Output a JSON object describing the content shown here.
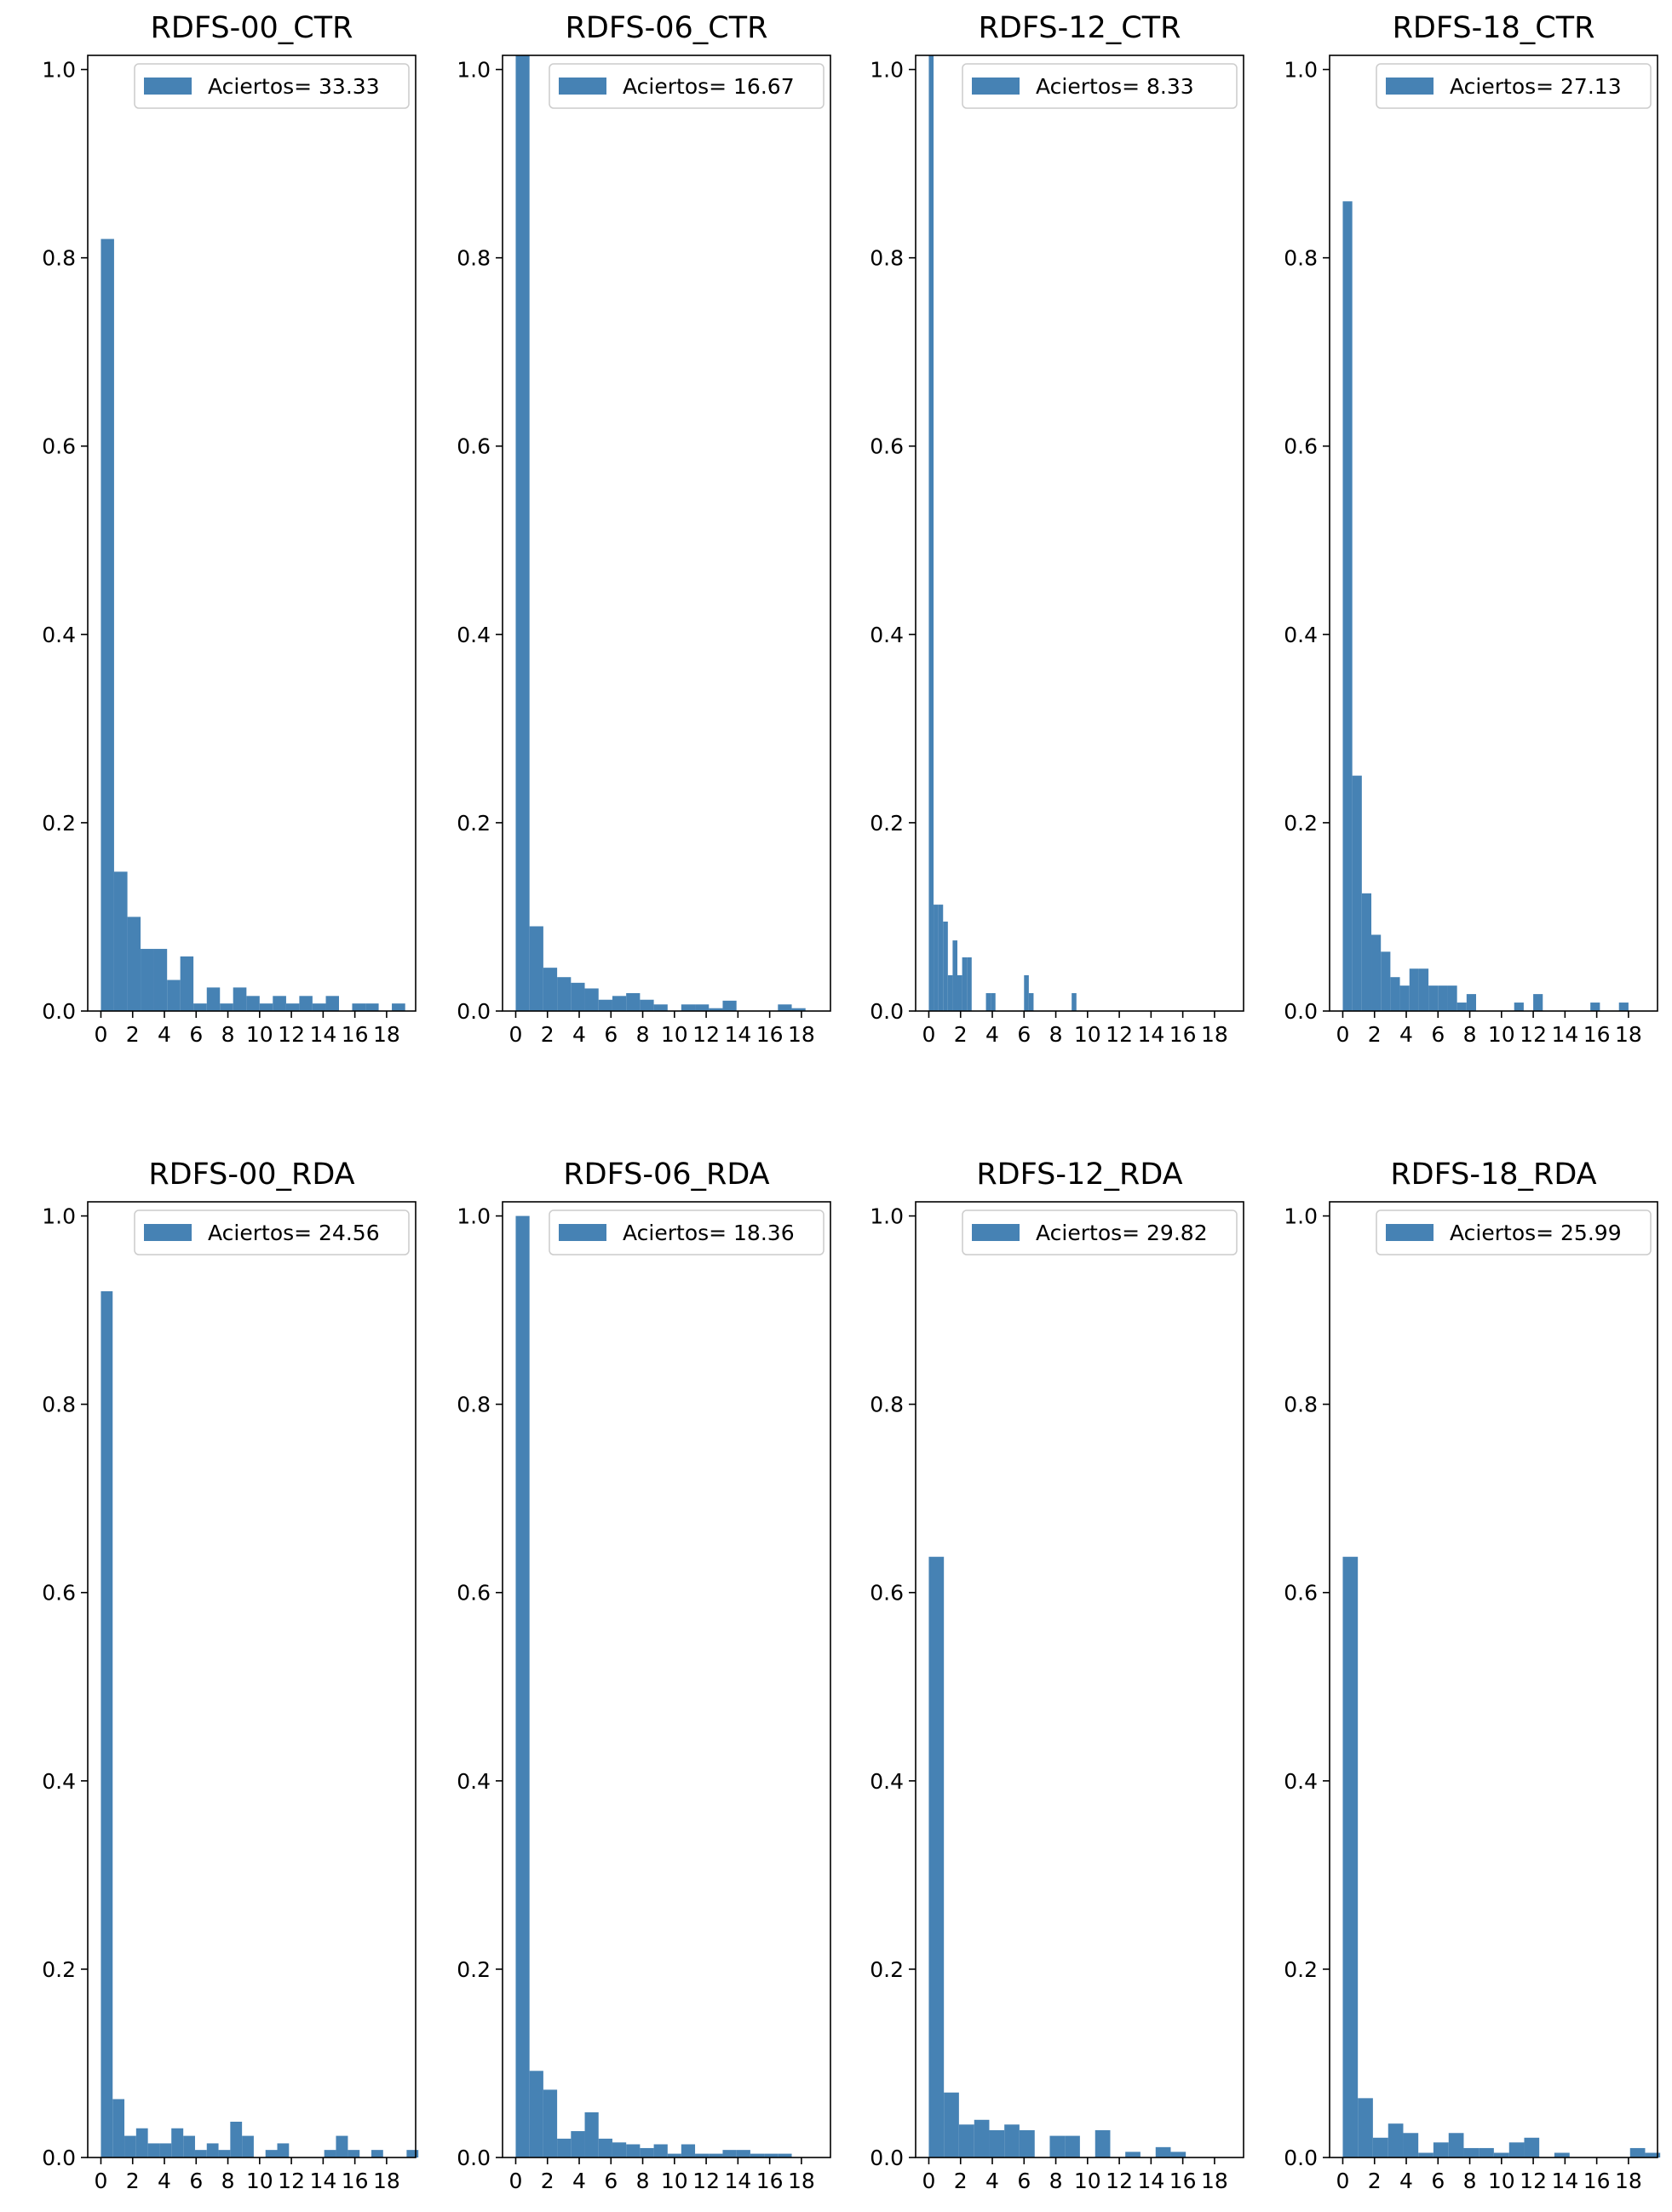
{
  "chart_data": [
    {
      "type": "bar",
      "title": "RDFS-00_CTR",
      "legend": "Aciertos= 33.33",
      "legend_position": "upper right",
      "bar_color": "#4682b4",
      "xlim": [
        -0.83,
        19.83
      ],
      "ylim": [
        0,
        1.015
      ],
      "xticks": [
        "0",
        "2",
        "4",
        "6",
        "8",
        "10",
        "12",
        "14",
        "16",
        "18"
      ],
      "yticks": [
        "0.0",
        "0.2",
        "0.4",
        "0.6",
        "0.8",
        "1.0"
      ],
      "bars": {
        "edges": [
          0,
          0.83,
          1.67,
          2.5,
          3.33,
          4.17,
          5,
          5.83,
          6.67,
          7.5,
          8.33,
          9.17,
          10,
          10.83,
          11.67,
          12.5,
          13.33,
          14.17,
          15,
          15.83,
          16.67,
          17.5,
          18.33,
          19.17,
          20
        ],
        "values": [
          0.82,
          0.148,
          0.1,
          0.066,
          0.066,
          0.033,
          0.058,
          0.008,
          0.025,
          0.008,
          0.025,
          0.016,
          0.008,
          0.016,
          0.008,
          0.016,
          0.008,
          0.016,
          0,
          0.008,
          0.008,
          0,
          0.008,
          0,
          0.016
        ]
      }
    },
    {
      "type": "bar",
      "title": "RDFS-06_CTR",
      "legend": "Aciertos= 16.67",
      "legend_position": "upper right",
      "bar_color": "#4682b4",
      "xlim": [
        -0.83,
        19.83
      ],
      "ylim": [
        0,
        1.015
      ],
      "xticks": [
        "0",
        "2",
        "4",
        "6",
        "8",
        "10",
        "12",
        "14",
        "16",
        "18"
      ],
      "yticks": [
        "0.0",
        "0.2",
        "0.4",
        "0.6",
        "0.8",
        "1.0"
      ],
      "bars": {
        "edges": [
          0,
          0.87,
          1.74,
          2.61,
          3.48,
          4.35,
          5.22,
          6.09,
          6.96,
          7.83,
          8.7,
          9.57,
          10.43,
          11.3,
          12.17,
          13.04,
          13.91,
          14.78,
          15.65,
          16.52,
          17.39,
          18.26,
          19.13,
          20
        ],
        "values": [
          1.015,
          0.09,
          0.046,
          0.036,
          0.03,
          0.024,
          0.012,
          0.016,
          0.019,
          0.012,
          0.007,
          0,
          0.007,
          0.007,
          0.003,
          0.011,
          0,
          0,
          0,
          0.007,
          0.003,
          0,
          0,
          0.007
        ]
      }
    },
    {
      "type": "bar",
      "title": "RDFS-12_CTR",
      "legend": "Aciertos= 8.33",
      "legend_position": "upper right",
      "bar_color": "#4682b4",
      "xlim": [
        -0.83,
        19.83
      ],
      "ylim": [
        0,
        1.015
      ],
      "xticks": [
        "0",
        "2",
        "4",
        "6",
        "8",
        "10",
        "12",
        "14",
        "16",
        "18"
      ],
      "yticks": [
        "0.0",
        "0.2",
        "0.4",
        "0.6",
        "0.8",
        "1.0"
      ],
      "bars": {
        "edges": [
          0,
          0.3,
          0.6,
          0.9,
          1.2,
          1.5,
          1.8,
          2.1,
          2.4,
          2.7,
          3.0,
          3.3,
          3.6,
          3.9,
          4.2,
          4.5,
          4.8,
          5.1,
          5.4,
          5.7,
          6.0,
          6.3,
          6.6,
          6.9,
          7.2,
          7.5,
          7.8,
          8.1,
          8.4,
          8.7,
          9.0,
          9.3
        ],
        "values": [
          1.015,
          0.113,
          0.113,
          0.095,
          0.038,
          0.075,
          0.038,
          0.057,
          0.057,
          0,
          0,
          0,
          0.019,
          0.019,
          0,
          0,
          0,
          0,
          0,
          0,
          0.038,
          0.019,
          0,
          0,
          0,
          0,
          0,
          0,
          0,
          0,
          0.019
        ]
      }
    },
    {
      "type": "bar",
      "title": "RDFS-18_CTR",
      "legend": "Aciertos= 27.13",
      "legend_position": "upper right",
      "bar_color": "#4682b4",
      "xlim": [
        -0.83,
        19.83
      ],
      "ylim": [
        0,
        1.015
      ],
      "xticks": [
        "0",
        "2",
        "4",
        "6",
        "8",
        "10",
        "12",
        "14",
        "16",
        "18"
      ],
      "yticks": [
        "0.0",
        "0.2",
        "0.4",
        "0.6",
        "0.8",
        "1.0"
      ],
      "bars": {
        "edges": [
          0,
          0.6,
          1.2,
          1.8,
          2.4,
          3.0,
          3.6,
          4.2,
          4.8,
          5.4,
          6.0,
          6.6,
          7.2,
          7.8,
          8.4,
          9.0,
          9.6,
          10.2,
          10.8,
          11.4,
          12.0,
          12.6,
          13.2,
          13.8,
          14.4,
          15.0,
          15.6,
          16.2,
          16.8,
          17.4,
          18.0
        ],
        "values": [
          0.86,
          0.25,
          0.125,
          0.081,
          0.063,
          0.036,
          0.027,
          0.045,
          0.045,
          0.027,
          0.027,
          0.027,
          0.009,
          0.018,
          0,
          0,
          0,
          0,
          0.009,
          0,
          0.018,
          0,
          0,
          0,
          0,
          0,
          0.009,
          0,
          0,
          0.009
        ]
      }
    },
    {
      "type": "bar",
      "title": "RDFS-00_RDA",
      "legend": "Aciertos= 24.56",
      "legend_position": "upper right",
      "bar_color": "#4682b4",
      "xlim": [
        -0.83,
        19.83
      ],
      "ylim": [
        0,
        1.015
      ],
      "xticks": [
        "0",
        "2",
        "4",
        "6",
        "8",
        "10",
        "12",
        "14",
        "16",
        "18"
      ],
      "yticks": [
        "0.0",
        "0.2",
        "0.4",
        "0.6",
        "0.8",
        "1.0"
      ],
      "bars": {
        "edges": [
          0,
          0.74,
          1.48,
          2.22,
          2.96,
          3.7,
          4.44,
          5.19,
          5.93,
          6.67,
          7.41,
          8.15,
          8.89,
          9.63,
          10.37,
          11.11,
          11.85,
          12.59,
          13.33,
          14.07,
          14.81,
          15.56,
          16.3,
          17.04,
          17.78,
          18.52,
          19.26,
          20
        ],
        "values": [
          0.92,
          0.062,
          0.023,
          0.031,
          0.015,
          0.015,
          0.031,
          0.023,
          0.008,
          0.015,
          0.008,
          0.038,
          0.023,
          0,
          0.008,
          0.015,
          0,
          0,
          0,
          0.008,
          0.023,
          0.008,
          0,
          0.008,
          0,
          0,
          0.008
        ]
      }
    },
    {
      "type": "bar",
      "title": "RDFS-06_RDA",
      "legend": "Aciertos= 18.36",
      "legend_position": "upper right",
      "bar_color": "#4682b4",
      "xlim": [
        -0.83,
        19.83
      ],
      "ylim": [
        0,
        1.015
      ],
      "xticks": [
        "0",
        "2",
        "4",
        "6",
        "8",
        "10",
        "12",
        "14",
        "16",
        "18"
      ],
      "yticks": [
        "0.0",
        "0.2",
        "0.4",
        "0.6",
        "0.8",
        "1.0"
      ],
      "bars": {
        "edges": [
          0,
          0.87,
          1.74,
          2.61,
          3.48,
          4.35,
          5.22,
          6.09,
          6.96,
          7.83,
          8.7,
          9.57,
          10.43,
          11.3,
          12.17,
          13.04,
          13.91,
          14.78,
          15.65,
          16.52,
          17.39,
          18.26,
          19.13,
          20
        ],
        "values": [
          1.0,
          0.092,
          0.072,
          0.02,
          0.028,
          0.048,
          0.02,
          0.016,
          0.014,
          0.01,
          0.014,
          0.004,
          0.014,
          0.004,
          0.004,
          0.008,
          0.008,
          0.004,
          0.004,
          0.004,
          0,
          0,
          0
        ]
      }
    },
    {
      "type": "bar",
      "title": "RDFS-12_RDA",
      "legend": "Aciertos= 29.82",
      "legend_position": "upper right",
      "bar_color": "#4682b4",
      "xlim": [
        -0.83,
        19.83
      ],
      "ylim": [
        0,
        1.015
      ],
      "xticks": [
        "0",
        "2",
        "4",
        "6",
        "8",
        "10",
        "12",
        "14",
        "16",
        "18"
      ],
      "yticks": [
        "0.0",
        "0.2",
        "0.4",
        "0.6",
        "0.8",
        "1.0"
      ],
      "bars": {
        "edges": [
          0,
          0.95,
          1.9,
          2.86,
          3.81,
          4.76,
          5.71,
          6.67,
          7.62,
          8.57,
          9.52,
          10.48,
          11.43,
          12.38,
          13.33,
          14.29,
          15.24,
          16.19,
          17.14,
          18.1,
          19.05
        ],
        "values": [
          0.638,
          0.069,
          0.035,
          0.04,
          0.029,
          0.035,
          0.029,
          0,
          0.023,
          0.023,
          0,
          0.029,
          0,
          0.006,
          0,
          0.011,
          0.006,
          0,
          0,
          0
        ]
      }
    },
    {
      "type": "bar",
      "title": "RDFS-18_RDA",
      "legend": "Aciertos= 25.99",
      "legend_position": "upper right",
      "bar_color": "#4682b4",
      "xlim": [
        -0.83,
        19.83
      ],
      "ylim": [
        0,
        1.015
      ],
      "xticks": [
        "0",
        "2",
        "4",
        "6",
        "8",
        "10",
        "12",
        "14",
        "16",
        "18"
      ],
      "yticks": [
        "0.0",
        "0.2",
        "0.4",
        "0.6",
        "0.8",
        "1.0"
      ],
      "bars": {
        "edges": [
          0,
          0.95,
          1.9,
          2.86,
          3.81,
          4.76,
          5.71,
          6.67,
          7.62,
          8.57,
          9.52,
          10.48,
          11.43,
          12.38,
          13.33,
          14.29,
          15.24,
          16.19,
          17.14,
          18.1,
          19.05,
          20
        ],
        "values": [
          0.638,
          0.063,
          0.021,
          0.036,
          0.026,
          0.005,
          0.016,
          0.026,
          0.01,
          0.01,
          0.005,
          0.016,
          0.021,
          0,
          0.005,
          0,
          0,
          0,
          0,
          0.01,
          0.005
        ]
      }
    }
  ]
}
